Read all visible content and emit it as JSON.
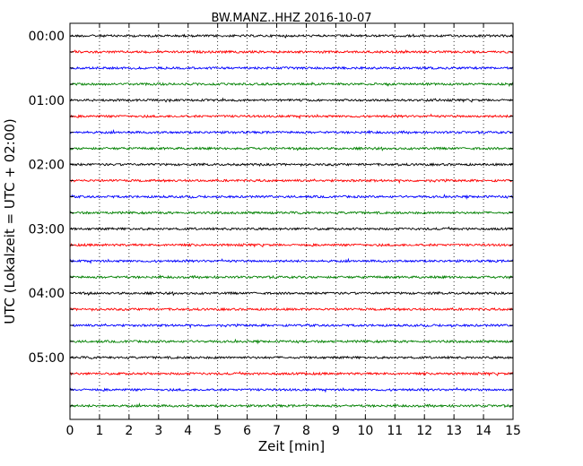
{
  "chart_data": {
    "type": "line",
    "title": "BW.MANZ..HHZ 2016-10-07",
    "xlabel": "Zeit  [min]",
    "ylabel": "UTC (Lokalzeit = UTC + 02:00)",
    "xlim": [
      0,
      15
    ],
    "x_ticks": [
      "0",
      "1",
      "2",
      "3",
      "4",
      "5",
      "6",
      "7",
      "8",
      "9",
      "10",
      "11",
      "12",
      "13",
      "14",
      "15"
    ],
    "y_tick_labels": [
      "00:00",
      "01:00",
      "02:00",
      "03:00",
      "04:00",
      "05:00"
    ],
    "vertical_grid": "dotted",
    "row_interval_minutes": 15,
    "rows_start": "00:00",
    "row_count": 24,
    "trace_colors": [
      "#000000",
      "#ff0000",
      "#0000ff",
      "#008000"
    ],
    "series_description": "seismic helicorder trace, low-amplitude noise in every row"
  }
}
